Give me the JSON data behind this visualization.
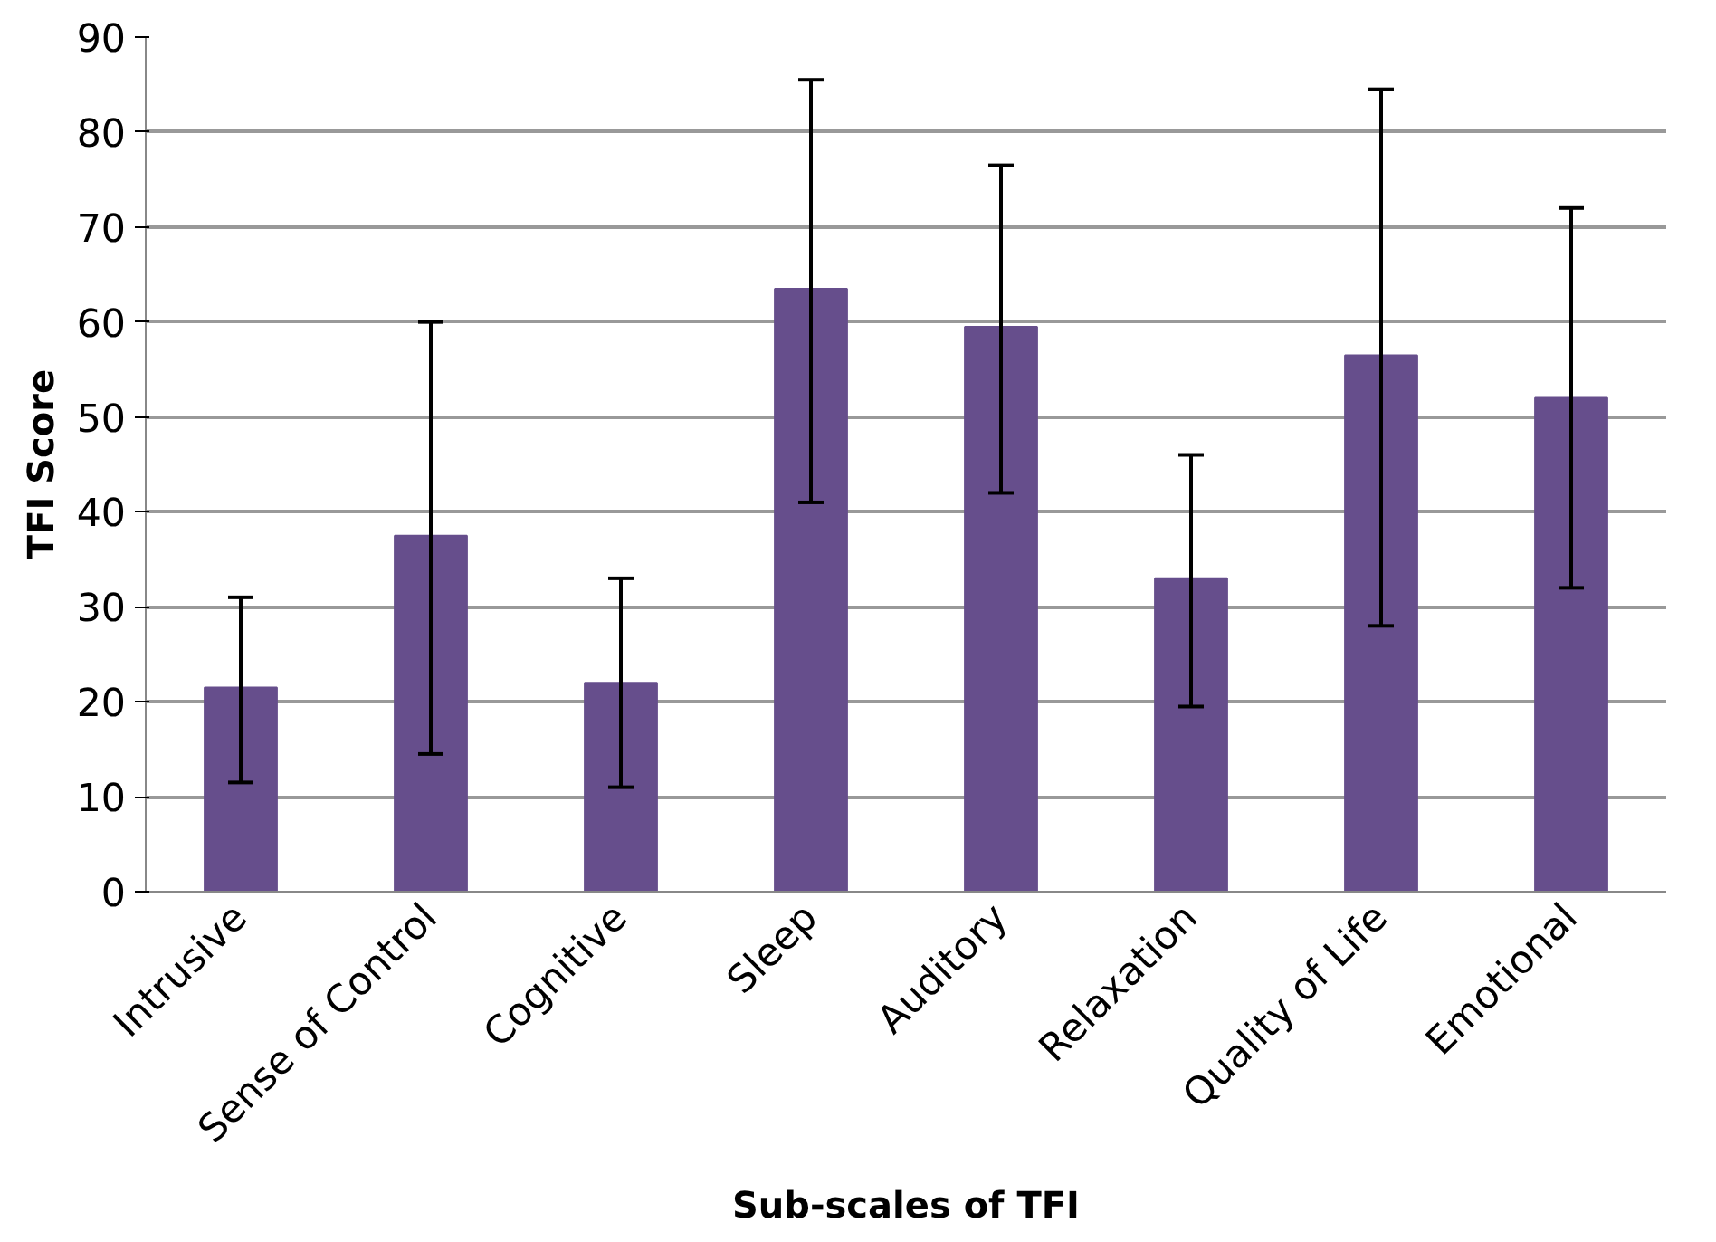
{
  "chart_data": {
    "type": "bar",
    "xlabel": "Sub-scales of TFI",
    "ylabel": "TFI Score",
    "categories": [
      "Intrusive",
      "Sense of Control",
      "Cognitive",
      "Sleep",
      "Auditory",
      "Relaxation",
      "Quality of Life",
      "Emotional"
    ],
    "values": [
      21.5,
      37.5,
      22,
      63.5,
      59.5,
      33,
      56.5,
      52
    ],
    "errors": [
      [
        11.5,
        31
      ],
      [
        14.5,
        60
      ],
      [
        11,
        33
      ],
      [
        41,
        85.5
      ],
      [
        42,
        76.5
      ],
      [
        19.5,
        46
      ],
      [
        28,
        84.5
      ],
      [
        32,
        72
      ]
    ],
    "color": "#664e8c",
    "ylim": [
      0,
      90
    ],
    "yticks": [
      0,
      10,
      20,
      30,
      40,
      50,
      60,
      70,
      80,
      90
    ],
    "grid": "y"
  }
}
